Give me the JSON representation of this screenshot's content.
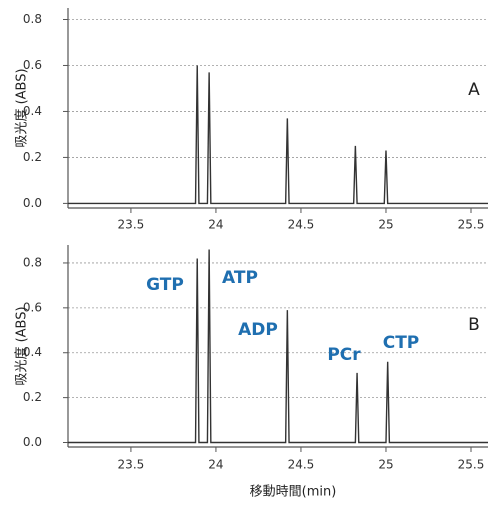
{
  "chart_data": [
    {
      "type": "line",
      "y_label": "吸光度 (ABS)",
      "panel_label": "A",
      "x": [
        23.13,
        23.88,
        23.89,
        23.9,
        23.95,
        23.96,
        23.97,
        24.41,
        24.42,
        24.43,
        24.81,
        24.82,
        24.83,
        24.99,
        25.0,
        25.01,
        25.6
      ],
      "values": [
        0,
        0,
        0.6,
        0,
        0,
        0.57,
        0,
        0,
        0.37,
        0,
        0,
        0.25,
        0,
        0,
        0.23,
        0,
        0
      ],
      "color": "#333333",
      "xlim": [
        23.13,
        25.6
      ],
      "xticks": [
        23.5,
        24,
        24.5,
        25,
        25.5
      ],
      "ylim": [
        -0.02,
        0.85
      ],
      "yticks": [
        {
          "value": 0,
          "label": "0.0"
        },
        0.2,
        0.4,
        0.6,
        0.8
      ],
      "grid": true
    },
    {
      "type": "line",
      "y_label": "吸光度 (ABS)",
      "x_label": "移動時間(min)",
      "panel_label": "B",
      "x": [
        23.13,
        23.88,
        23.89,
        23.9,
        23.95,
        23.96,
        23.97,
        24.41,
        24.42,
        24.43,
        24.82,
        24.83,
        24.84,
        25.0,
        25.01,
        25.02,
        25.6
      ],
      "values": [
        0,
        0,
        0.82,
        0,
        0,
        0.86,
        0,
        0,
        0.59,
        0,
        0,
        0.31,
        0,
        0,
        0.36,
        0,
        0
      ],
      "color": "#333333",
      "annotations": [
        "GTP",
        "ATP",
        "ADP",
        "PCr",
        "CTP"
      ],
      "xlim": [
        23.13,
        25.6
      ],
      "xticks": [
        23.5,
        24,
        24.5,
        25,
        25.5
      ],
      "ylim": [
        -0.02,
        0.88
      ],
      "yticks": [
        {
          "value": 0,
          "label": "0.0"
        },
        0.2,
        0.4,
        0.6,
        0.8
      ],
      "grid": true
    }
  ]
}
